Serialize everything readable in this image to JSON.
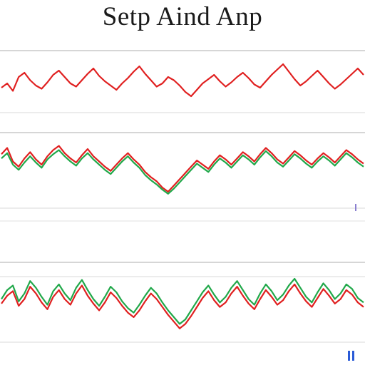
{
  "page": {
    "title": "Setp Aind Anp"
  },
  "colors": {
    "up": "#e02020",
    "down": "#21a84a",
    "grid": "#c8c8c8",
    "accent": "#2a5bd7"
  },
  "chart_data": [
    {
      "type": "line",
      "series": [
        {
          "color": "#e02020",
          "values": [
            48,
            52,
            45,
            58,
            62,
            55,
            50,
            47,
            53,
            60,
            64,
            58,
            52,
            49,
            55,
            61,
            66,
            59,
            54,
            50,
            46,
            52,
            57,
            63,
            68,
            61,
            55,
            49,
            52,
            58,
            55,
            50,
            44,
            40,
            46,
            52,
            56,
            60,
            54,
            49,
            53,
            58,
            62,
            57,
            51,
            48,
            54,
            60,
            65,
            70,
            63,
            56,
            50,
            54,
            59,
            64,
            58,
            52,
            47,
            51,
            56,
            61,
            66,
            60
          ]
        }
      ],
      "ylim": [
        30,
        80
      ]
    },
    {
      "type": "line",
      "series": [
        {
          "color": "#e02020",
          "values": [
            62,
            68,
            55,
            50,
            58,
            64,
            57,
            52,
            60,
            66,
            70,
            63,
            58,
            54,
            61,
            67,
            60,
            55,
            50,
            46,
            52,
            58,
            63,
            57,
            52,
            45,
            40,
            36,
            30,
            26,
            32,
            38,
            44,
            50,
            56,
            52,
            48,
            55,
            61,
            57,
            52,
            58,
            64,
            60,
            55,
            62,
            68,
            63,
            57,
            53,
            59,
            65,
            61,
            56,
            52,
            58,
            63,
            59,
            54,
            60,
            66,
            62,
            57,
            53
          ]
        },
        {
          "color": "#21a84a",
          "values": [
            58,
            63,
            52,
            47,
            54,
            60,
            54,
            49,
            57,
            62,
            66,
            60,
            55,
            51,
            58,
            63,
            57,
            52,
            47,
            43,
            49,
            55,
            60,
            54,
            49,
            42,
            37,
            33,
            28,
            24,
            29,
            35,
            41,
            47,
            53,
            49,
            45,
            52,
            58,
            54,
            49,
            55,
            61,
            57,
            52,
            59,
            65,
            60,
            54,
            50,
            56,
            62,
            58,
            53,
            49,
            55,
            60,
            56,
            51,
            57,
            63,
            59,
            54,
            50
          ]
        }
      ],
      "ylim": [
        15,
        80
      ]
    },
    {
      "type": "line",
      "series": [
        {
          "color": "#21a84a",
          "values": [
            50,
            58,
            62,
            48,
            55,
            66,
            60,
            52,
            45,
            57,
            63,
            55,
            49,
            60,
            67,
            58,
            50,
            44,
            52,
            61,
            56,
            48,
            42,
            38,
            45,
            53,
            60,
            55,
            47,
            40,
            34,
            28,
            32,
            40,
            48,
            56,
            62,
            54,
            47,
            52,
            60,
            66,
            58,
            50,
            45,
            55,
            63,
            57,
            49,
            54,
            62,
            68,
            60,
            52,
            47,
            56,
            64,
            58,
            50,
            55,
            63,
            59,
            51,
            47
          ]
        },
        {
          "color": "#e02020",
          "values": [
            46,
            53,
            57,
            44,
            50,
            61,
            55,
            47,
            41,
            52,
            58,
            50,
            45,
            55,
            62,
            53,
            46,
            40,
            47,
            56,
            51,
            44,
            38,
            34,
            40,
            48,
            55,
            50,
            43,
            36,
            30,
            24,
            28,
            35,
            43,
            51,
            57,
            49,
            43,
            47,
            55,
            61,
            53,
            46,
            41,
            50,
            58,
            52,
            45,
            49,
            57,
            63,
            55,
            48,
            43,
            51,
            59,
            53,
            46,
            50,
            58,
            54,
            47,
            43
          ]
        }
      ],
      "ylim": [
        15,
        80
      ]
    }
  ]
}
